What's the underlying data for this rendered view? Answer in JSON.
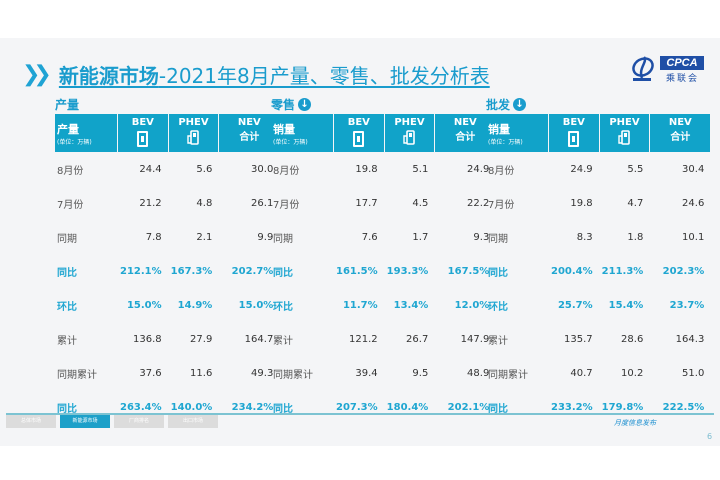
{
  "header": {
    "title_bold": "新能源市场",
    "title_rest": "-2021年8月产量、零售、批发分析表",
    "logo": {
      "badge": "CPCA",
      "sub": "乘联会"
    }
  },
  "colors": {
    "accent": "#1a9ccd",
    "header_bg": "#11a3c9",
    "highlight": "#1fa6d1"
  },
  "columns": {
    "bev": "BEV",
    "phev": "PHEV",
    "nev": "NEV",
    "nev_sub": "合计",
    "unit": "(单位：万辆)"
  },
  "panels": [
    {
      "title": "产量",
      "has_icon": false,
      "header_label": "产量",
      "rows": [
        {
          "label": "8月份",
          "bev": "24.4",
          "phev": "5.6",
          "nev": "30.0",
          "hl": false
        },
        {
          "label": "7月份",
          "bev": "21.2",
          "phev": "4.8",
          "nev": "26.1",
          "hl": false
        },
        {
          "label": "同期",
          "bev": "7.8",
          "phev": "2.1",
          "nev": "9.9",
          "hl": false
        },
        {
          "label": "同比",
          "bev": "212.1%",
          "phev": "167.3%",
          "nev": "202.7%",
          "hl": true
        },
        {
          "label": "环比",
          "bev": "15.0%",
          "phev": "14.9%",
          "nev": "15.0%",
          "hl": true
        },
        {
          "label": "累计",
          "bev": "136.8",
          "phev": "27.9",
          "nev": "164.7",
          "hl": false
        },
        {
          "label": "同期累计",
          "bev": "37.6",
          "phev": "11.6",
          "nev": "49.3",
          "hl": false
        },
        {
          "label": "同比",
          "bev": "263.4%",
          "phev": "140.0%",
          "nev": "234.2%",
          "hl": true
        }
      ]
    },
    {
      "title": "零售",
      "has_icon": true,
      "header_label": "销量",
      "rows": [
        {
          "label": "8月份",
          "bev": "19.8",
          "phev": "5.1",
          "nev": "24.9",
          "hl": false
        },
        {
          "label": "7月份",
          "bev": "17.7",
          "phev": "4.5",
          "nev": "22.2",
          "hl": false
        },
        {
          "label": "同期",
          "bev": "7.6",
          "phev": "1.7",
          "nev": "9.3",
          "hl": false
        },
        {
          "label": "同比",
          "bev": "161.5%",
          "phev": "193.3%",
          "nev": "167.5%",
          "hl": true
        },
        {
          "label": "环比",
          "bev": "11.7%",
          "phev": "13.4%",
          "nev": "12.0%",
          "hl": true
        },
        {
          "label": "累计",
          "bev": "121.2",
          "phev": "26.7",
          "nev": "147.9",
          "hl": false
        },
        {
          "label": "同期累计",
          "bev": "39.4",
          "phev": "9.5",
          "nev": "48.9",
          "hl": false
        },
        {
          "label": "同比",
          "bev": "207.3%",
          "phev": "180.4%",
          "nev": "202.1%",
          "hl": true
        }
      ]
    },
    {
      "title": "批发",
      "has_icon": true,
      "header_label": "销量",
      "rows": [
        {
          "label": "8月份",
          "bev": "24.9",
          "phev": "5.5",
          "nev": "30.4",
          "hl": false
        },
        {
          "label": "7月份",
          "bev": "19.8",
          "phev": "4.7",
          "nev": "24.6",
          "hl": false
        },
        {
          "label": "同期",
          "bev": "8.3",
          "phev": "1.8",
          "nev": "10.1",
          "hl": false
        },
        {
          "label": "同比",
          "bev": "200.4%",
          "phev": "211.3%",
          "nev": "202.3%",
          "hl": true
        },
        {
          "label": "环比",
          "bev": "25.7%",
          "phev": "15.4%",
          "nev": "23.7%",
          "hl": true
        },
        {
          "label": "累计",
          "bev": "135.7",
          "phev": "28.6",
          "nev": "164.3",
          "hl": false
        },
        {
          "label": "同期累计",
          "bev": "40.7",
          "phev": "10.2",
          "nev": "51.0",
          "hl": false
        },
        {
          "label": "同比",
          "bev": "233.2%",
          "phev": "179.8%",
          "nev": "222.5%",
          "hl": true
        }
      ]
    }
  ],
  "footer": {
    "tabs": [
      {
        "label": "总体市场",
        "active": false
      },
      {
        "label": "新能源市场",
        "active": true
      },
      {
        "label": "厂商排名",
        "active": false
      },
      {
        "label": "出口市场",
        "active": false
      }
    ],
    "brand": "月度信息发布",
    "page": "6"
  }
}
